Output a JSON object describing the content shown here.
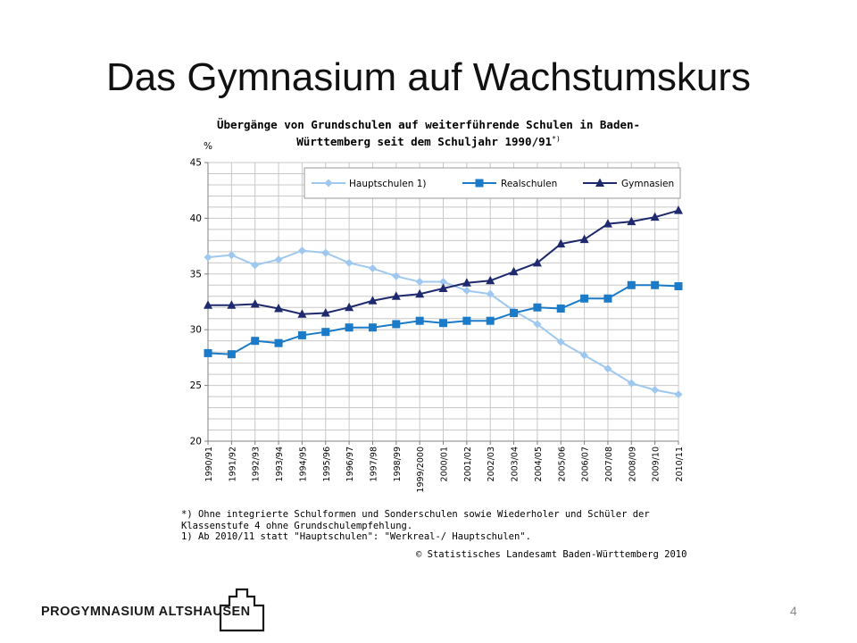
{
  "slide": {
    "title": "Das Gymnasium auf Wachstumskurs",
    "page_number": "4",
    "logo_text": "PROGYMNASIUM ALTSHAUSEN"
  },
  "chart_title_line1": "Übergänge von Grundschulen auf weiterführende Schulen in Baden-",
  "chart_title_line2": "Württemberg seit dem Schuljahr 1990/91",
  "chart_title_mark": "*)",
  "notes": "*) Ohne integrierte Schulformen und Sonderschulen sowie Wiederholer und Schüler der\nKlassenstufe 4 ohne Grundschulempfehlung.\n1) Ab 2010/11 statt \"Hauptschulen\": \"Werkreal-/ Hauptschulen\".",
  "copyright": "© Statistisches Landesamt Baden-Württemberg 2010",
  "colors": {
    "hauptschulen": "#9ec8f0",
    "realschulen": "#1b7bc8",
    "gymnasien": "#1f2a6e",
    "grid": "#c8c8c8"
  },
  "chart_data": {
    "type": "line",
    "title": "Übergänge von Grundschulen auf weiterführende Schulen in Baden-Württemberg seit dem Schuljahr 1990/91 *)",
    "ylabel": "%",
    "ylim": [
      20,
      45
    ],
    "yticks": [
      20,
      25,
      30,
      35,
      40,
      45
    ],
    "grid": true,
    "legend_position": "top-right",
    "categories": [
      "1990/91",
      "1991/92",
      "1992/93",
      "1993/94",
      "1994/95",
      "1995/96",
      "1996/97",
      "1997/98",
      "1998/99",
      "1999/2000",
      "2000/01",
      "2001/02",
      "2002/03",
      "2003/04",
      "2004/05",
      "2005/06",
      "2006/07",
      "2007/08",
      "2008/09",
      "2009/10",
      "2010/11"
    ],
    "series": [
      {
        "name": "Hauptschulen 1)",
        "marker": "diamond",
        "values": [
          36.5,
          36.7,
          35.8,
          36.3,
          37.1,
          36.9,
          36.0,
          35.5,
          34.8,
          34.3,
          34.3,
          33.5,
          33.2,
          31.7,
          30.5,
          28.9,
          27.7,
          26.5,
          25.2,
          24.6,
          24.2
        ]
      },
      {
        "name": "Realschulen",
        "marker": "square",
        "values": [
          27.9,
          27.8,
          29.0,
          28.8,
          29.5,
          29.8,
          30.2,
          30.2,
          30.5,
          30.8,
          30.6,
          30.8,
          30.8,
          31.5,
          32.0,
          31.9,
          32.8,
          32.8,
          34.0,
          34.0,
          33.9
        ]
      },
      {
        "name": "Gymnasien",
        "marker": "triangle",
        "values": [
          32.2,
          32.2,
          32.3,
          31.9,
          31.4,
          31.5,
          32.0,
          32.6,
          33.0,
          33.2,
          33.7,
          34.2,
          34.4,
          35.2,
          36.0,
          37.7,
          38.1,
          39.5,
          39.7,
          40.1,
          40.7
        ]
      }
    ]
  }
}
